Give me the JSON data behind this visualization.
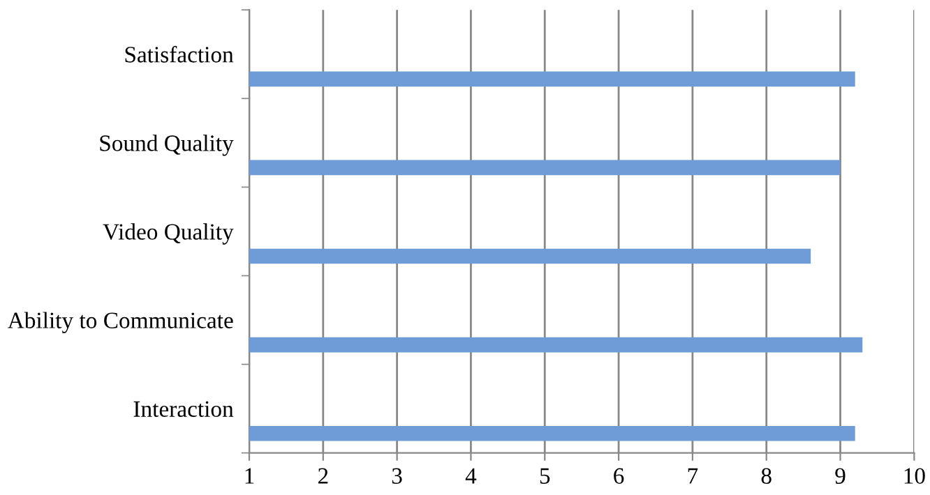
{
  "chart_data": {
    "type": "bar",
    "orientation": "horizontal",
    "categories": [
      "Satisfaction",
      "Sound Quality",
      "Video Quality",
      "Ability to Communicate",
      "Interaction"
    ],
    "values": [
      9.2,
      9.0,
      8.6,
      9.3,
      9.2
    ],
    "color": "#6f9bd6",
    "xlim": [
      1,
      10
    ],
    "xticks": [
      1,
      2,
      3,
      4,
      5,
      6,
      7,
      8,
      9,
      10
    ],
    "grid": "x",
    "legend": false
  }
}
